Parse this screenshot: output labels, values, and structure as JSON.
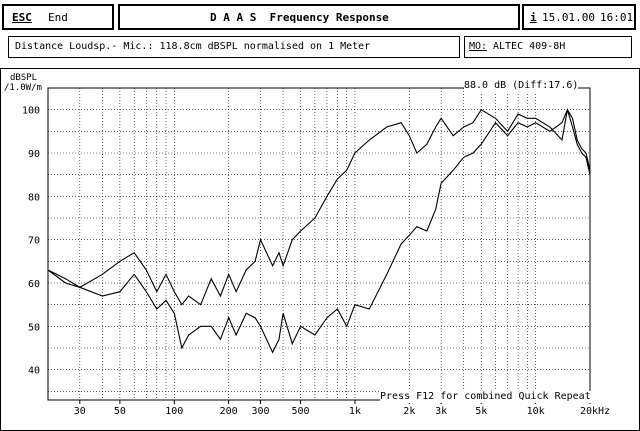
{
  "topbar": {
    "esc_key": "ESC",
    "end_label": "End",
    "title": "D A A S  Frequency Response",
    "info_key": "i",
    "date": "15.01.00",
    "time": "16:01"
  },
  "infobar": {
    "measurement": "Distance Loudsp.- Mic.: 118.8cm dBSPL normalised on 1 Meter",
    "model_label": "MO:",
    "model": "ALTEC 409-8H"
  },
  "plot": {
    "ylabel": "dBSPL",
    "yunit": "/1.0W/m",
    "level_readout": "88.0 dB (Diff:17.6)",
    "hint": "Press F12 for combined Quick Repeat",
    "x_ticks": [
      "30",
      "50",
      "100",
      "200",
      "300",
      "500",
      "1k",
      "2k",
      "3k",
      "5k",
      "10k",
      "20kHz"
    ],
    "y_ticks": [
      "40",
      "50",
      "60",
      "70",
      "80",
      "90",
      "100"
    ]
  },
  "chart_data": {
    "type": "line",
    "xscale": "log",
    "xlim": [
      20,
      20000
    ],
    "ylim": [
      33,
      105
    ],
    "ylabel": "dBSPL /1.0W/m",
    "grid": true,
    "series": [
      {
        "x": [
          20,
          25,
          30,
          40,
          50,
          60,
          70,
          80,
          90,
          100,
          110,
          120,
          140,
          160,
          180,
          200,
          220,
          250,
          280,
          300,
          350,
          380,
          400,
          450,
          500,
          600,
          700,
          800,
          900,
          1000,
          1200,
          1500,
          1800,
          2000,
          2200,
          2500,
          2800,
          3000,
          3500,
          4000,
          4500,
          5000,
          6000,
          7000,
          8000,
          9000,
          10000,
          12000,
          14000,
          15000,
          16000,
          17000,
          18000,
          19000,
          20000
        ],
        "y": [
          63,
          61,
          59,
          62,
          65,
          67,
          63,
          58,
          62,
          58,
          55,
          57,
          55,
          61,
          57,
          62,
          58,
          63,
          65,
          70,
          64,
          67,
          64,
          70,
          72,
          75,
          80,
          84,
          86,
          90,
          93,
          96,
          97,
          94,
          90,
          92,
          96,
          98,
          94,
          96,
          97,
          100,
          98,
          95,
          99,
          98,
          98,
          96,
          93,
          100,
          98,
          93,
          91,
          90,
          86
        ]
      },
      {
        "x": [
          20,
          25,
          30,
          40,
          50,
          60,
          70,
          80,
          90,
          100,
          110,
          120,
          140,
          160,
          180,
          200,
          220,
          250,
          280,
          300,
          350,
          380,
          400,
          450,
          500,
          600,
          700,
          800,
          900,
          1000,
          1200,
          1500,
          1800,
          2000,
          2200,
          2500,
          2800,
          3000,
          3500,
          4000,
          4500,
          5000,
          6000,
          7000,
          8000,
          9000,
          10000,
          12000,
          14000,
          15000,
          16000,
          17000,
          18000,
          19000,
          20000
        ],
        "y": [
          63,
          60,
          59,
          57,
          58,
          62,
          58,
          54,
          56,
          53,
          45,
          48,
          50,
          50,
          47,
          52,
          48,
          53,
          52,
          50,
          44,
          47,
          53,
          46,
          50,
          48,
          52,
          54,
          50,
          55,
          54,
          62,
          69,
          71,
          73,
          72,
          77,
          83,
          86,
          89,
          90,
          92,
          97,
          94,
          97,
          96,
          97,
          95,
          97,
          100,
          96,
          92,
          90,
          89,
          85
        ]
      }
    ]
  }
}
